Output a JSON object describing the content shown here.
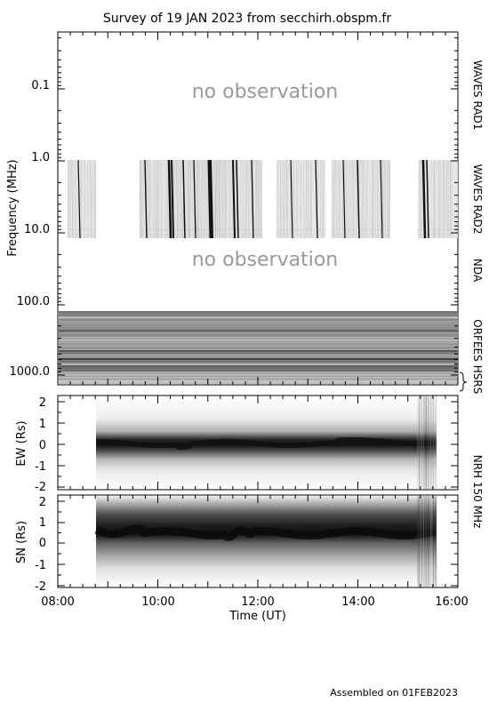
{
  "title": "Survey of 19 JAN 2023 from secchirh.obspm.fr",
  "footer": "Assembled on 01FEB2023",
  "chart_data": [
    {
      "type": "heatmap",
      "title": "Survey of 19 JAN 2023 from secchirh.obspm.fr",
      "ylabel": "Frequency (MHz)",
      "yscale": "log",
      "ylim": [
        0.02,
        2000.0
      ],
      "y_tick_labels": [
        "0.1",
        "1.0",
        "10.0",
        "100.0",
        "1000.0"
      ],
      "y_tick_values": [
        0.1,
        1.0,
        10.0,
        100.0,
        1000.0
      ],
      "instruments": [
        {
          "name": "WAVES RAD1",
          "freq_range": [
            0.02,
            1.0
          ],
          "note": "no observation"
        },
        {
          "name": "WAVES RAD2",
          "freq_range": [
            1.0,
            16.0
          ]
        },
        {
          "name": "NDA",
          "freq_range": [
            16.0,
            150.0
          ],
          "note": "no observation"
        },
        {
          "name": "ORFEES",
          "freq_range": [
            150.0,
            1000.0
          ]
        },
        {
          "name": "HSRS",
          "freq_range": [
            1000.0,
            2000.0
          ]
        }
      ],
      "data_segments_rad2_ut": [
        [
          "08:15",
          "08:45"
        ],
        [
          "09:35",
          "11:40"
        ],
        [
          "12:25",
          "13:20"
        ],
        [
          "13:45",
          "14:55"
        ],
        [
          "15:20",
          "16:00"
        ]
      ],
      "orfees_coverage_ut": [
        "08:00",
        "16:00"
      ]
    },
    {
      "type": "heatmap",
      "ylabel": "EW (Rs)",
      "ylim": [
        -2,
        2
      ],
      "y_tick_labels": [
        "2",
        "1",
        "0",
        "-1",
        "-2"
      ],
      "coverage_ut": [
        "08:45",
        "15:30"
      ]
    },
    {
      "type": "heatmap",
      "ylabel": "SN (Rs)",
      "ylim": [
        -2,
        2
      ],
      "y_tick_labels": [
        "2",
        "1",
        "0",
        "-1",
        "-2"
      ],
      "coverage_ut": [
        "08:45",
        "15:30"
      ]
    }
  ],
  "x_axis": {
    "label": "Time (UT)",
    "range_ut": [
      "08:00",
      "16:00"
    ],
    "tick_labels": [
      "08:00",
      "10:00",
      "12:00",
      "14:00",
      "16:00"
    ]
  },
  "side_labels": {
    "rad1": "WAVES RAD1",
    "rad2": "WAVES RAD2",
    "nda": "NDA",
    "orfees": "ORFEES",
    "hsrs": "HSRS",
    "nrh": "NRH 150 MHz"
  },
  "no_obs_labels": {
    "rad1": "no observation",
    "nda": "no observation"
  },
  "nrh_tick_labels": [
    "2",
    "1",
    "0",
    "-1",
    "-2"
  ]
}
